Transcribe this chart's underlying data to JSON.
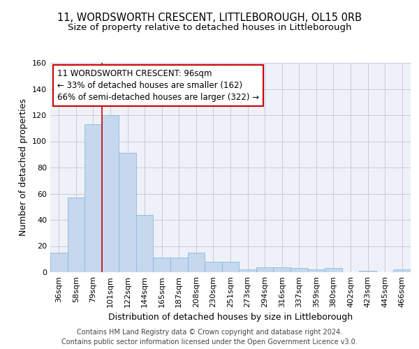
{
  "title_line1": "11, WORDSWORTH CRESCENT, LITTLEBOROUGH, OL15 0RB",
  "title_line2": "Size of property relative to detached houses in Littleborough",
  "xlabel": "Distribution of detached houses by size in Littleborough",
  "ylabel": "Number of detached properties",
  "categories": [
    "36sqm",
    "58sqm",
    "79sqm",
    "101sqm",
    "122sqm",
    "144sqm",
    "165sqm",
    "187sqm",
    "208sqm",
    "230sqm",
    "251sqm",
    "273sqm",
    "294sqm",
    "316sqm",
    "337sqm",
    "359sqm",
    "380sqm",
    "402sqm",
    "423sqm",
    "445sqm",
    "466sqm"
  ],
  "values": [
    15,
    57,
    113,
    120,
    91,
    44,
    11,
    11,
    15,
    8,
    8,
    2,
    4,
    4,
    3,
    2,
    3,
    0,
    1,
    0,
    2
  ],
  "bar_color": "#c5d8ee",
  "bar_edge_color": "#8db8dc",
  "vline_x": 2.5,
  "vline_color": "#cc0000",
  "annotation_text_line1": "11 WORDSWORTH CRESCENT: 96sqm",
  "annotation_text_line2": "← 33% of detached houses are smaller (162)",
  "annotation_text_line3": "66% of semi-detached houses are larger (322) →",
  "annotation_box_color": "#ffffff",
  "annotation_box_edge_color": "#cc0000",
  "ylim": [
    0,
    160
  ],
  "yticks": [
    0,
    20,
    40,
    60,
    80,
    100,
    120,
    140,
    160
  ],
  "grid_color": "#c8c8d8",
  "background_color": "#eef2f8",
  "footer_line1": "Contains HM Land Registry data © Crown copyright and database right 2024.",
  "footer_line2": "Contains public sector information licensed under the Open Government Licence v3.0.",
  "title_fontsize": 10.5,
  "subtitle_fontsize": 9.5,
  "axis_label_fontsize": 9,
  "tick_fontsize": 8,
  "annotation_fontsize": 8.5,
  "footer_fontsize": 7
}
